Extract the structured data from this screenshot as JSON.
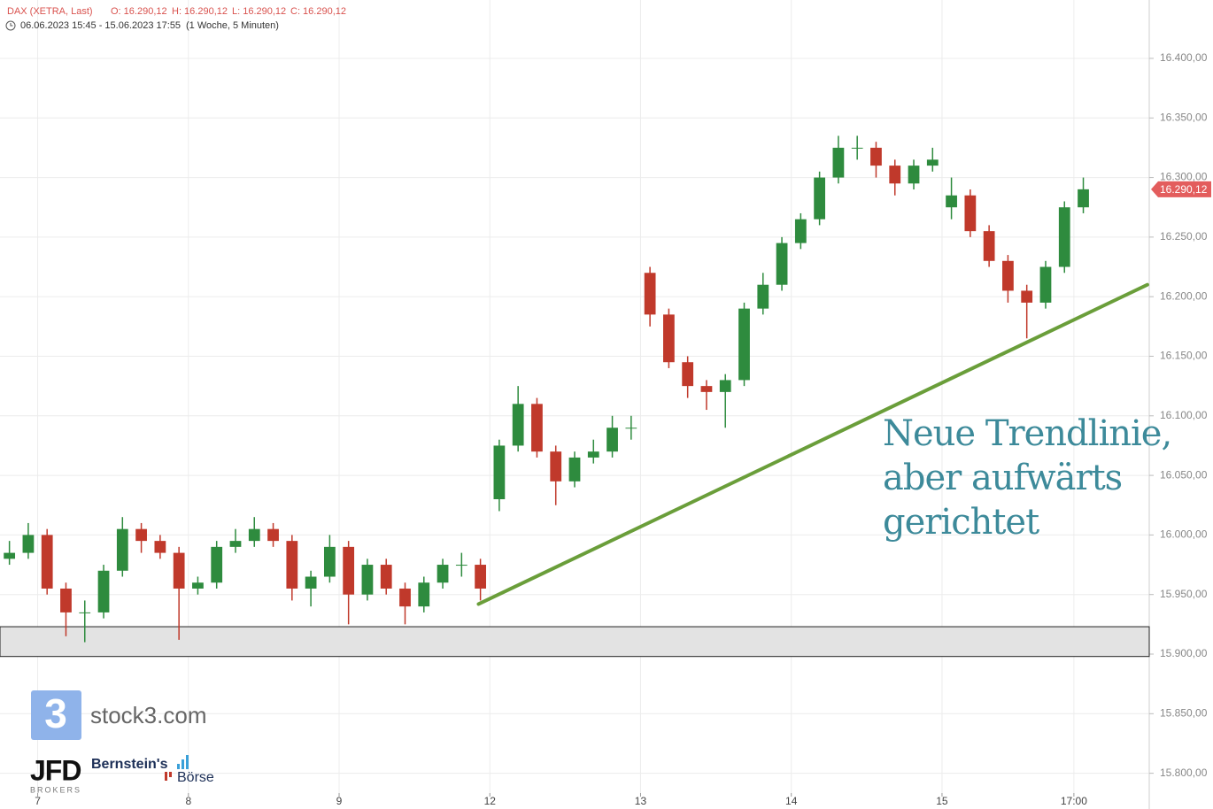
{
  "chart_data": {
    "type": "candlestick",
    "header": {
      "instrument": "DAX (XETRA, Last)",
      "ohlc": [
        "O: 16.290,12",
        "H: 16.290,12",
        "L: 16.290,12",
        "C: 16.290,12"
      ],
      "range": "06.06.2023 15:45 - 15.06.2023 17:55",
      "interval": "(1 Woche, 5 Minuten)"
    },
    "open": [
      15980,
      15985,
      16000,
      15955,
      15935,
      15935,
      15970,
      16005,
      15995,
      15985,
      15955,
      15960,
      15990,
      15995,
      16005,
      15995,
      15955,
      15965,
      15990,
      15950,
      15975,
      15955,
      15940,
      15960,
      15975,
      15975,
      16030,
      16075,
      16110,
      16070,
      16045,
      16065,
      16070,
      16090,
      16220,
      16185,
      16145,
      16125,
      16120,
      16130,
      16190,
      16210,
      16245,
      16265,
      16300,
      16325,
      16325,
      16310,
      16295,
      16310,
      16275,
      16285,
      16255,
      16230,
      16205,
      16195,
      16225,
      16275
    ],
    "high": [
      15995,
      16010,
      16005,
      15960,
      15945,
      15975,
      16015,
      16010,
      16000,
      15990,
      15965,
      15995,
      16005,
      16015,
      16010,
      16000,
      15970,
      16000,
      15995,
      15980,
      15980,
      15960,
      15965,
      15980,
      15985,
      15980,
      16080,
      16125,
      16115,
      16075,
      16070,
      16080,
      16100,
      16100,
      16225,
      16190,
      16150,
      16130,
      16135,
      16195,
      16220,
      16250,
      16270,
      16305,
      16335,
      16335,
      16330,
      16315,
      16315,
      16325,
      16300,
      16290,
      16260,
      16235,
      16210,
      16230,
      16280,
      16300
    ],
    "low": [
      15975,
      15980,
      15950,
      15915,
      15910,
      15930,
      15965,
      15985,
      15980,
      15912,
      15950,
      15955,
      15985,
      15990,
      15990,
      15945,
      15940,
      15960,
      15925,
      15945,
      15950,
      15925,
      15935,
      15955,
      15965,
      15945,
      16020,
      16070,
      16065,
      16025,
      16040,
      16060,
      16065,
      16080,
      16175,
      16140,
      16115,
      16105,
      16090,
      16125,
      16185,
      16205,
      16240,
      16260,
      16295,
      16315,
      16300,
      16285,
      16290,
      16305,
      16265,
      16250,
      16225,
      16195,
      16165,
      16190,
      16220,
      16270
    ],
    "close": [
      15985,
      16000,
      15955,
      15935,
      15935,
      15970,
      16005,
      15995,
      15985,
      15955,
      15960,
      15990,
      15995,
      16005,
      15995,
      15955,
      15965,
      15990,
      15950,
      15975,
      15955,
      15940,
      15960,
      15975,
      15975,
      15955,
      16075,
      16110,
      16070,
      16045,
      16065,
      16070,
      16090,
      16090,
      16185,
      16145,
      16125,
      16120,
      16130,
      16190,
      16210,
      16245,
      16265,
      16300,
      16325,
      16325,
      16310,
      16295,
      16310,
      16315,
      16285,
      16255,
      16230,
      16205,
      16195,
      16225,
      16275,
      16290.12
    ],
    "up_color": "#2e8b3e",
    "down_color": "#c0392b",
    "last_price": {
      "value": 16290.12,
      "label": "16.290,12"
    },
    "xlim": [
      0,
      61
    ],
    "xticks": [
      {
        "value": 2,
        "label": "7"
      },
      {
        "value": 10,
        "label": "8"
      },
      {
        "value": 18,
        "label": "9"
      },
      {
        "value": 26,
        "label": "12"
      },
      {
        "value": 34,
        "label": "13"
      },
      {
        "value": 42,
        "label": "14"
      },
      {
        "value": 50,
        "label": "15"
      },
      {
        "value": 57,
        "label": "17:00"
      }
    ],
    "ylim": [
      15770,
      16449
    ],
    "yticks": [
      {
        "value": 15800,
        "label": "15.800,00"
      },
      {
        "value": 15850,
        "label": "15.850,00"
      },
      {
        "value": 15900,
        "label": "15.900,00"
      },
      {
        "value": 15950,
        "label": "15.950,00"
      },
      {
        "value": 16000,
        "label": "16.000,00"
      },
      {
        "value": 16050,
        "label": "16.050,00"
      },
      {
        "value": 16100,
        "label": "16.100,00"
      },
      {
        "value": 16150,
        "label": "16.150,00"
      },
      {
        "value": 16200,
        "label": "16.200,00"
      },
      {
        "value": 16250,
        "label": "16.250,00"
      },
      {
        "value": 16300,
        "label": "16.300,00"
      },
      {
        "value": 16350,
        "label": "16.350,00"
      },
      {
        "value": 16400,
        "label": "16.400,00"
      }
    ],
    "grid": true,
    "support_zone": [
      15898,
      15923
    ],
    "trendline": {
      "x": [
        25.4,
        60.9
      ],
      "y": [
        15942,
        16210
      ],
      "color": "#6a9e3a"
    },
    "annotation": [
      "Neue Trendlinie,",
      "aber aufwärts",
      "gerichtet"
    ],
    "logos": {
      "badge": "3",
      "site": "stock3.com",
      "broker": "JFD",
      "broker_sub": "BROKERS",
      "partner": "Bernstein's",
      "partner_sub": "Börse"
    }
  }
}
